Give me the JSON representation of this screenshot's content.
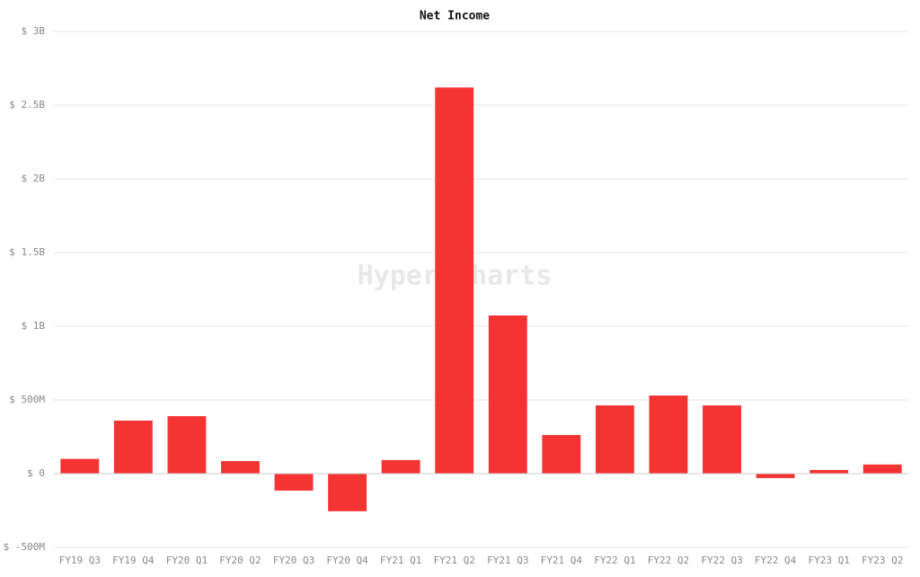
{
  "chart_data": {
    "type": "bar",
    "title": "Net Income",
    "watermark": "Hyper-Charts",
    "categories": [
      "FY19 Q3",
      "FY19 Q4",
      "FY20 Q1",
      "FY20 Q2",
      "FY20 Q3",
      "FY20 Q4",
      "FY21 Q1",
      "FY21 Q2",
      "FY21 Q3",
      "FY21 Q4",
      "FY22 Q1",
      "FY22 Q2",
      "FY22 Q3",
      "FY22 Q4",
      "FY23 Q1",
      "FY23 Q2"
    ],
    "values": [
      100000000,
      360000000,
      390000000,
      85000000,
      -115000000,
      -255000000,
      92000000,
      2620000000,
      1073000000,
      262000000,
      463000000,
      530000000,
      463000000,
      -30000000,
      25000000,
      62000000
    ],
    "color": "#f53333",
    "ylim": [
      -500000000,
      3000000000
    ],
    "yticks": [
      {
        "value": -500000000,
        "label": "$ -500M"
      },
      {
        "value": 0,
        "label": "$ 0"
      },
      {
        "value": 500000000,
        "label": "$ 500M"
      },
      {
        "value": 1000000000,
        "label": "$ 1B"
      },
      {
        "value": 1500000000,
        "label": "$ 1.5B"
      },
      {
        "value": 2000000000,
        "label": "$ 2B"
      },
      {
        "value": 2500000000,
        "label": "$ 2.5B"
      },
      {
        "value": 3000000000,
        "label": "$ 3B"
      }
    ],
    "grid": true
  }
}
